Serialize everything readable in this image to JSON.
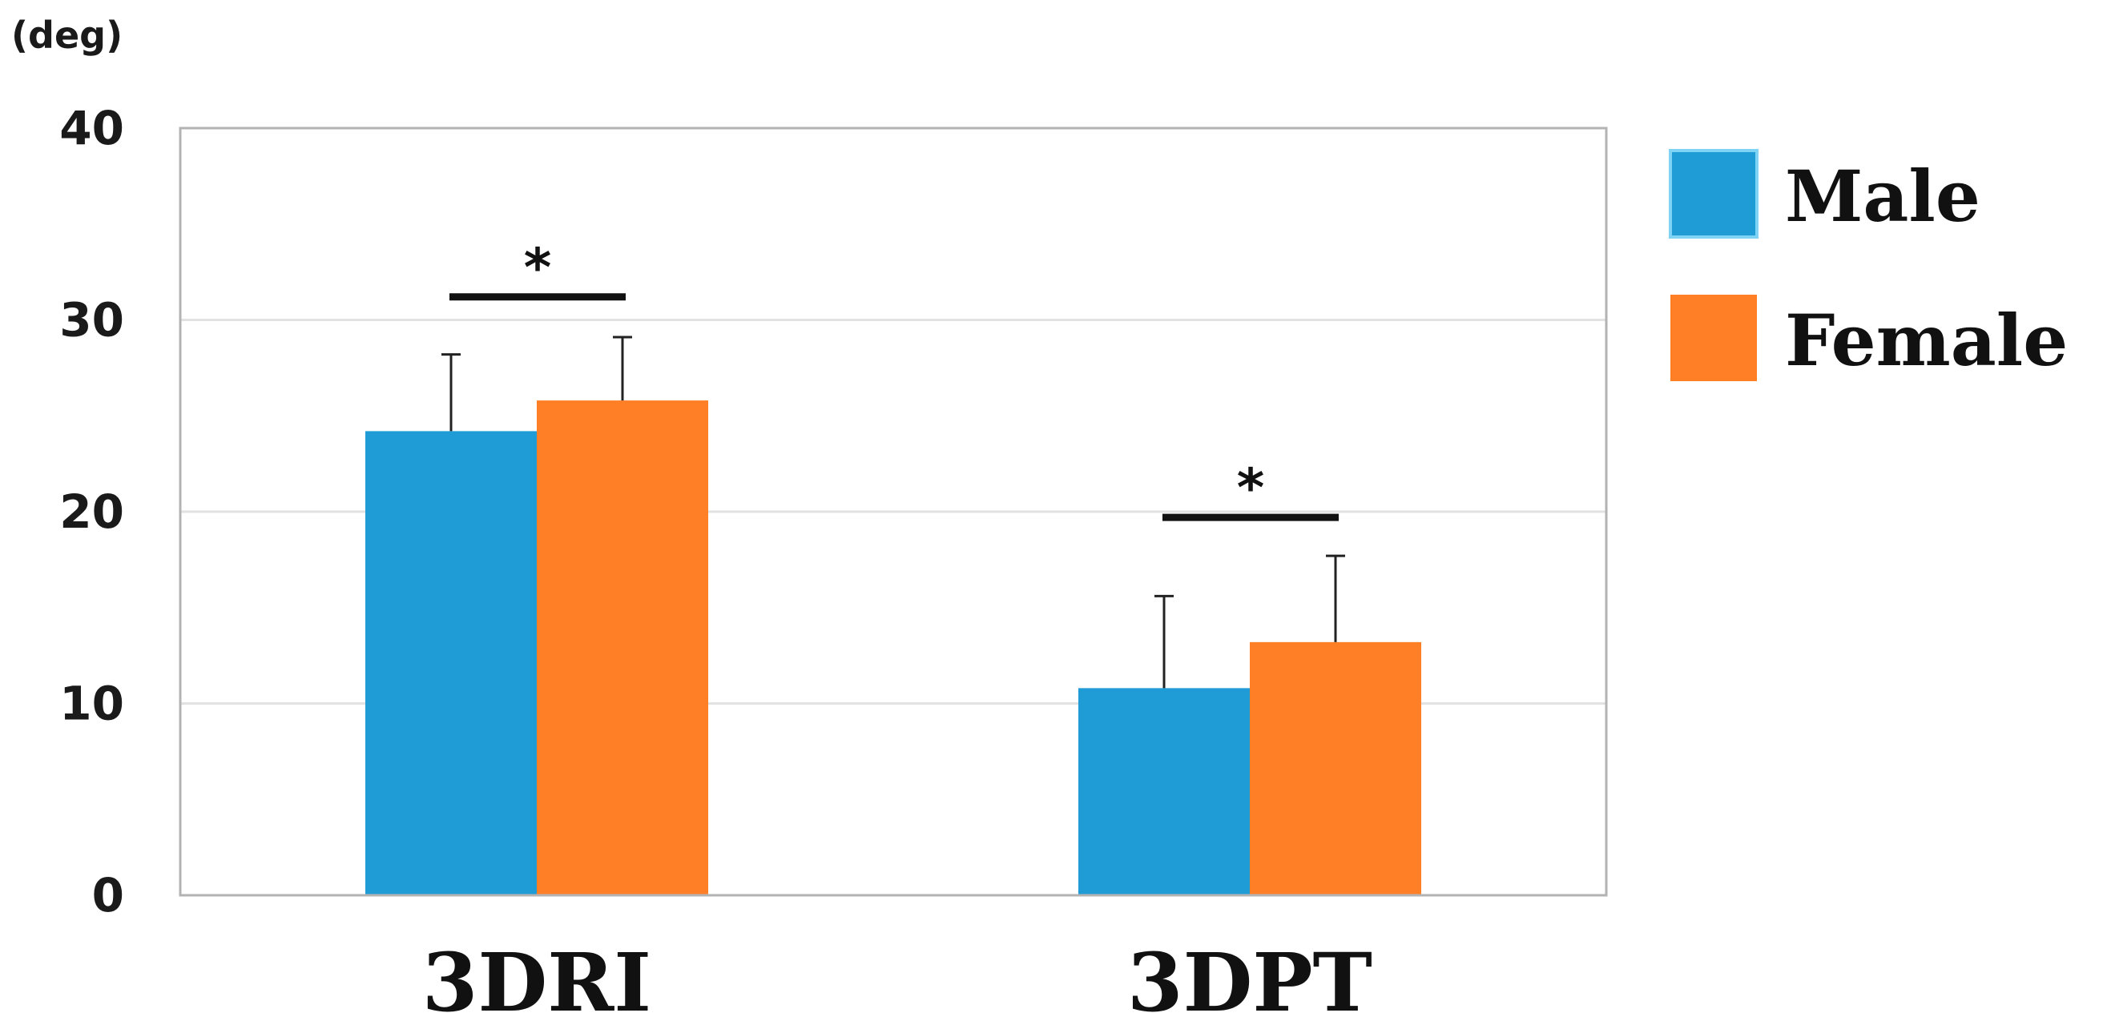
{
  "chart_data": {
    "type": "bar",
    "title": "",
    "ylabel": "(deg)",
    "xlabel": "",
    "ylim": [
      0,
      40
    ],
    "yticks": [
      "0",
      "10",
      "20",
      "30",
      "40"
    ],
    "categories": [
      "3DRI",
      "3DPT"
    ],
    "series": [
      {
        "name": "Male",
        "color": "#1f9bd6",
        "values": [
          24.2,
          10.8
        ],
        "errors": [
          4.0,
          4.8
        ]
      },
      {
        "name": "Female",
        "color": "#ff7f27",
        "values": [
          25.8,
          13.2
        ],
        "errors": [
          3.3,
          4.5
        ]
      }
    ],
    "significance": [
      {
        "category": "3DRI",
        "label": "*",
        "level": 31.2
      },
      {
        "category": "3DPT",
        "label": "*",
        "level": 19.7
      }
    ],
    "grid": true,
    "legend_position": "right"
  }
}
